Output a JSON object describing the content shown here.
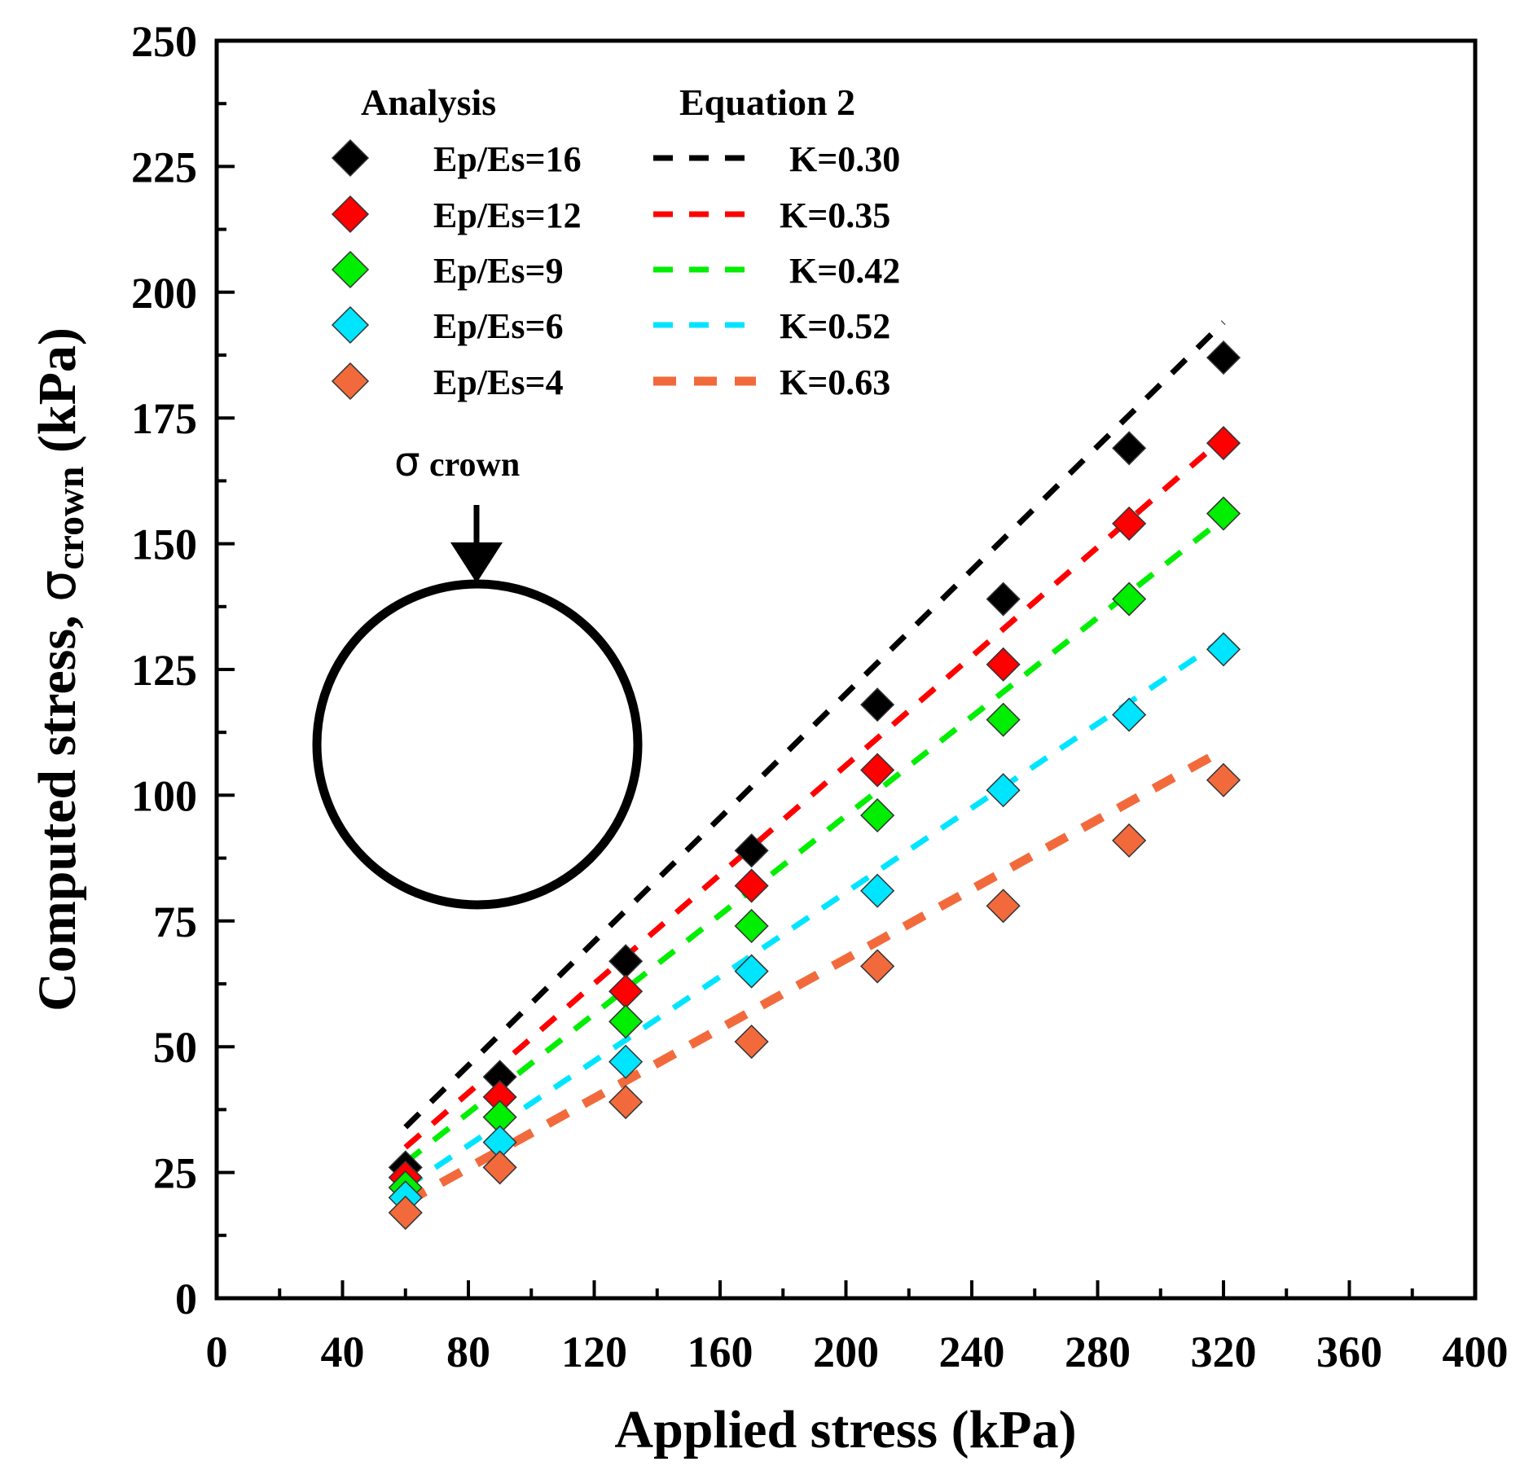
{
  "chart_data": {
    "type": "scatter",
    "xlabel": "Applied stress (kPa)",
    "ylabel_prefix": "Computed stress, ",
    "ylabel_symbol": "σ",
    "ylabel_subscript": "crown",
    "ylabel_suffix": " (kPa)",
    "xlim": [
      0,
      400
    ],
    "ylim": [
      0,
      250
    ],
    "xticks": [
      0,
      40,
      80,
      120,
      160,
      200,
      240,
      280,
      320,
      360,
      400
    ],
    "yticks": [
      0,
      25,
      50,
      75,
      100,
      125,
      150,
      175,
      200,
      225,
      250
    ],
    "grid": false,
    "legend": {
      "placement": "top-left",
      "analysis_title": "Analysis",
      "equation_title": "Equation 2"
    },
    "inset": {
      "symbol": "σ",
      "subscript": "crown",
      "description": "circular pipe with crown load arrow"
    },
    "series": [
      {
        "name": "Ep/Es=16",
        "equation_label": "K=0.30",
        "color": "#000000",
        "x": [
          60,
          90,
          130,
          170,
          210,
          250,
          290,
          320
        ],
        "values": [
          26,
          44,
          67,
          89,
          118,
          139,
          169,
          187
        ],
        "line_x": [
          60,
          320
        ],
        "line_y": [
          34,
          194
        ]
      },
      {
        "name": "Ep/Es=12",
        "equation_label": "K=0.35",
        "color": "#ff0000",
        "x": [
          60,
          90,
          130,
          170,
          210,
          250,
          290,
          320
        ],
        "values": [
          24,
          40,
          61,
          82,
          105,
          126,
          154,
          170
        ],
        "line_x": [
          60,
          320
        ],
        "line_y": [
          30,
          171
        ]
      },
      {
        "name": "Ep/Es=9",
        "equation_label": "K=0.42",
        "color": "#00ee00",
        "x": [
          60,
          90,
          130,
          170,
          210,
          250,
          290,
          320
        ],
        "values": [
          22,
          36,
          55,
          74,
          96,
          115,
          139,
          156
        ],
        "line_x": [
          60,
          320
        ],
        "line_y": [
          27,
          155
        ]
      },
      {
        "name": "Ep/Es=6",
        "equation_label": "K=0.52",
        "color": "#00e5ff",
        "x": [
          60,
          90,
          130,
          170,
          210,
          250,
          290,
          320
        ],
        "values": [
          20,
          31,
          47,
          65,
          81,
          101,
          116,
          129
        ],
        "line_x": [
          60,
          320
        ],
        "line_y": [
          22,
          131
        ]
      },
      {
        "name": "Ep/Es=4",
        "equation_label": "K=0.63",
        "color": "#f26a3c",
        "x": [
          60,
          90,
          130,
          170,
          210,
          250,
          290,
          320
        ],
        "values": [
          17,
          26,
          39,
          51,
          66,
          78,
          91,
          103
        ],
        "line_x": [
          60,
          320
        ],
        "line_y": [
          19,
          109
        ]
      }
    ]
  }
}
